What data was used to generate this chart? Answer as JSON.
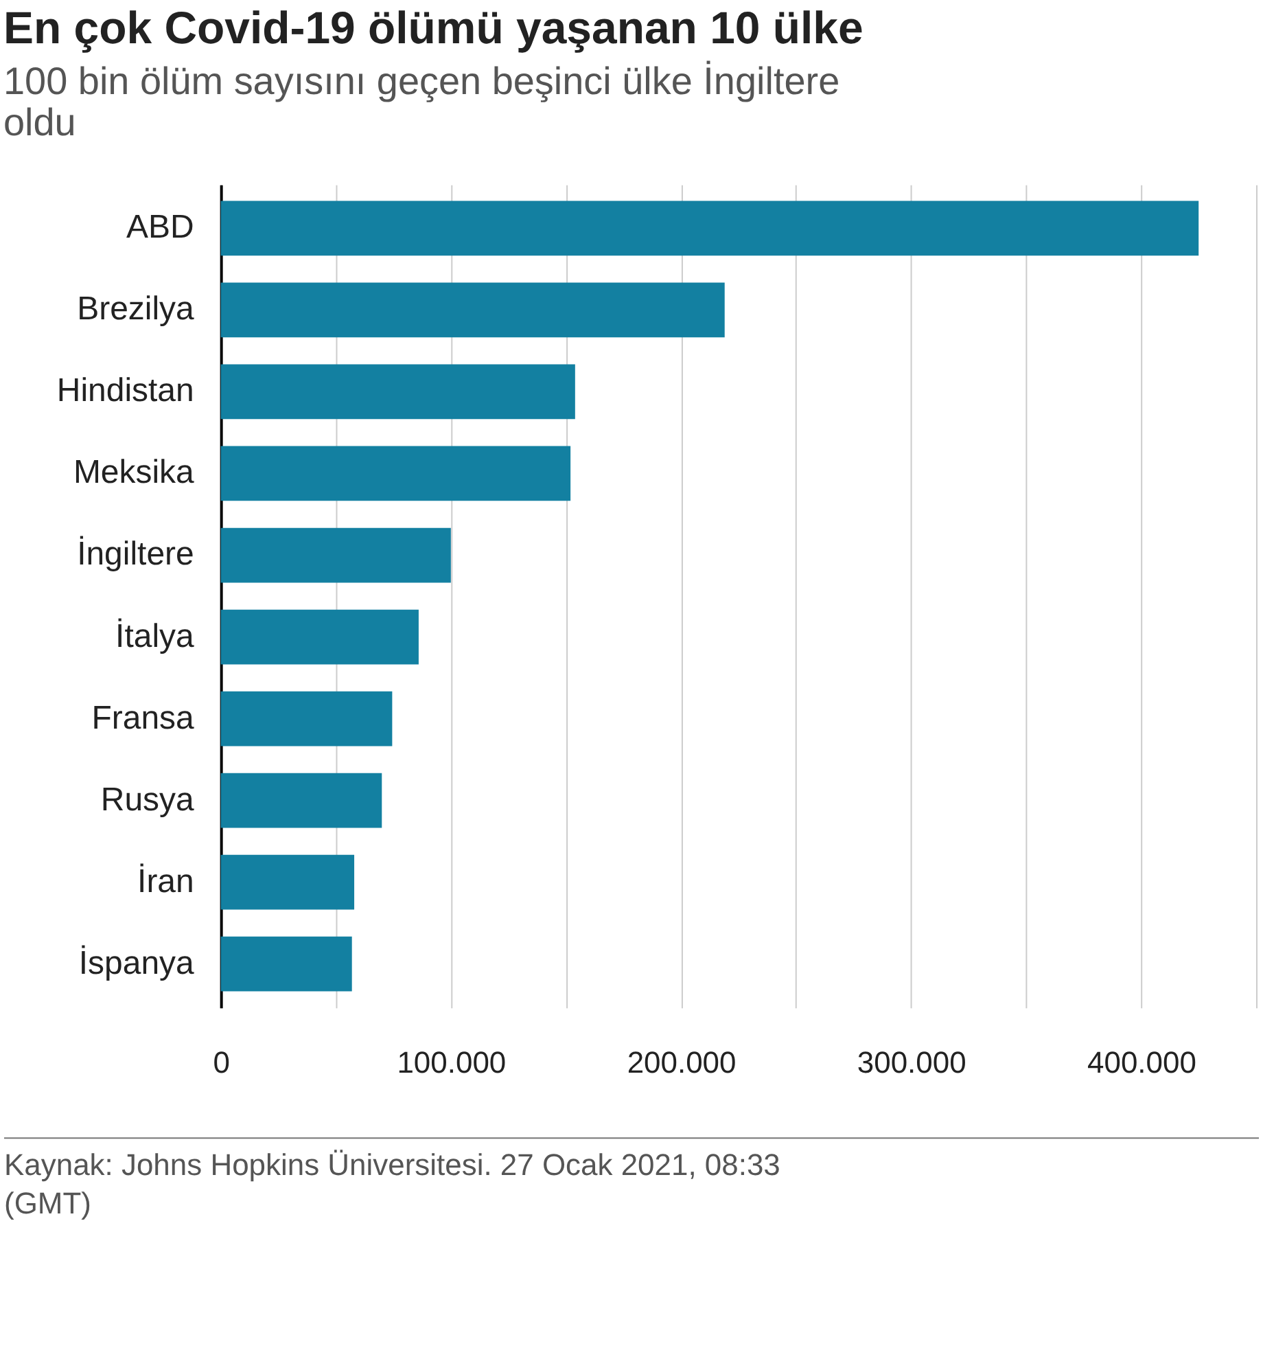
{
  "chart_data": {
    "type": "bar",
    "orientation": "horizontal",
    "title": "En çok Covid-19 ölümü yaşanan 10 ülke",
    "subtitle": "100 bin ölüm sayısını geçen beşinci ülke İngiltere oldu",
    "categories": [
      "ABD",
      "Brezilya",
      "Hindistan",
      "Meksika",
      "İngiltere",
      "İtalya",
      "Fransa",
      "Rusya",
      "İran",
      "İspanya"
    ],
    "values": [
      425000,
      219000,
      154000,
      152000,
      100000,
      86000,
      74500,
      70000,
      58000,
      57000
    ],
    "color": "#1380a1",
    "xlim": [
      0,
      450000
    ],
    "xticks": [
      {
        "value": 0,
        "label": "0"
      },
      {
        "value": 50000,
        "label": null
      },
      {
        "value": 100000,
        "label": "100.000"
      },
      {
        "value": 150000,
        "label": null
      },
      {
        "value": 200000,
        "label": "200.000"
      },
      {
        "value": 250000,
        "label": null
      },
      {
        "value": 300000,
        "label": "300.000"
      },
      {
        "value": 350000,
        "label": null
      },
      {
        "value": 400000,
        "label": "400.000"
      },
      {
        "value": 450000,
        "label": null
      }
    ],
    "grid": "x",
    "annotations": [
      "Kaynak: Johns Hopkins Üniversitesi. 27 Ocak 2021, 08:33 (GMT)"
    ]
  }
}
